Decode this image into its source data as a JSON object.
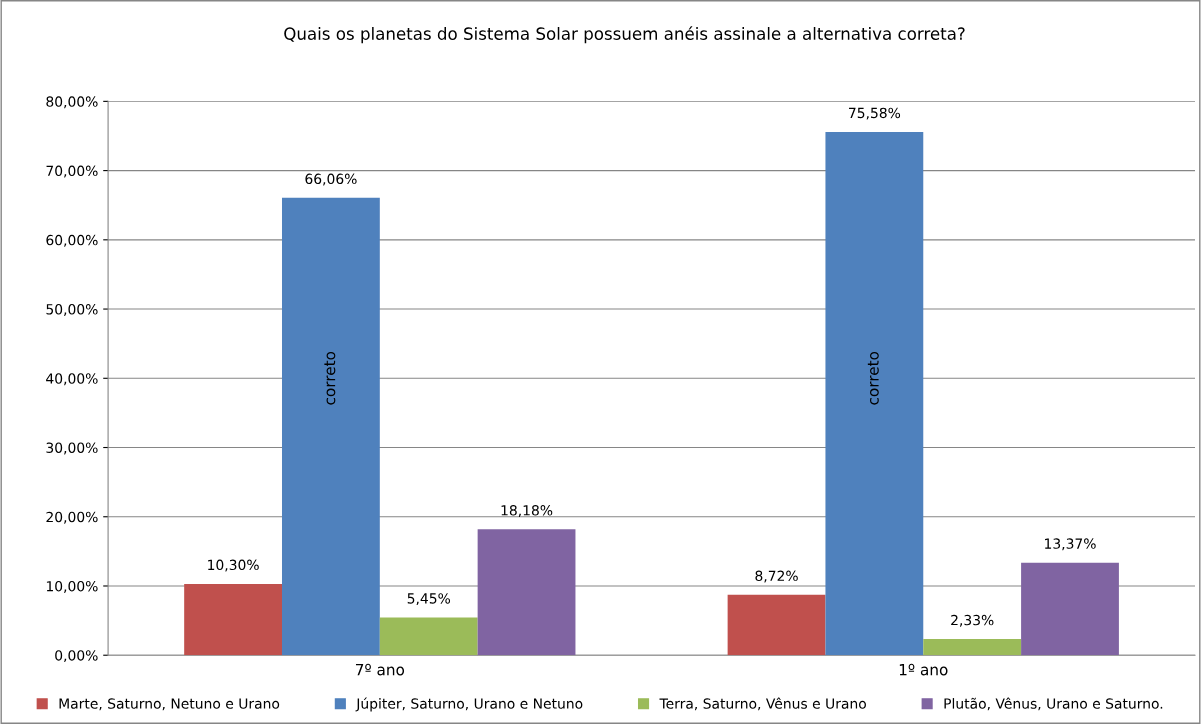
{
  "chart_data": {
    "type": "bar",
    "title": "Quais os planetas do Sistema Solar possuem anéis assinale a alternativa correta?",
    "categories": [
      "7º ano",
      "1º ano"
    ],
    "series": [
      {
        "name": "Marte, Saturno, Netuno e Urano",
        "color": "#c0504d",
        "values": [
          10.3,
          8.72
        ],
        "value_labels": [
          "10,30%",
          "8,72%"
        ]
      },
      {
        "name": "Júpiter, Saturno, Urano e Netuno",
        "color": "#4f81bd",
        "values": [
          66.06,
          75.58
        ],
        "value_labels": [
          "66,06%",
          "75,58%"
        ]
      },
      {
        "name": "Terra, Saturno, Vênus e Urano",
        "color": "#9bbb59",
        "values": [
          5.45,
          2.33
        ],
        "value_labels": [
          "5,45%",
          "2,33%"
        ]
      },
      {
        "name": "Plutão, Vênus, Urano e Saturno.",
        "color": "#8064a2",
        "values": [
          18.18,
          13.37
        ],
        "value_labels": [
          "18,18%",
          "13,37%"
        ]
      }
    ],
    "ylim": [
      0,
      80
    ],
    "yticks": [
      {
        "value": 0,
        "label": "0,00%"
      },
      {
        "value": 10,
        "label": "10,00%"
      },
      {
        "value": 20,
        "label": "20,00%"
      },
      {
        "value": 30,
        "label": "30,00%"
      },
      {
        "value": 40,
        "label": "40,00%"
      },
      {
        "value": 50,
        "label": "50,00%"
      },
      {
        "value": 60,
        "label": "60,00%"
      },
      {
        "value": 70,
        "label": "70,00%"
      },
      {
        "value": 80,
        "label": "80,00%"
      }
    ],
    "annotations": [
      {
        "text": "correto",
        "x": "7º ano",
        "y": 40
      },
      {
        "text": "correto",
        "x": "1º ano",
        "y": 40
      }
    ],
    "grid": "y",
    "legend": "bottom"
  }
}
